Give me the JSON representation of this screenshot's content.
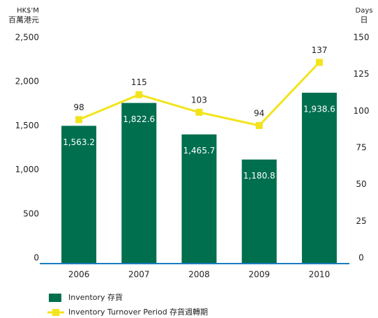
{
  "chart_data": {
    "type": "bar_line",
    "y_label": [
      "HK$'M",
      "百萬港元"
    ],
    "y2_label": [
      "Days",
      "日"
    ],
    "categories": [
      "2006",
      "2007",
      "2008",
      "2009",
      "2010"
    ],
    "series": [
      {
        "name": "Inventory 存貨",
        "type": "bar",
        "color": "#006f4e",
        "values": [
          1563.2,
          1822.6,
          1465.7,
          1180.8,
          1938.6
        ],
        "value_labels": [
          "1,563.2",
          "1,822.6",
          "1,465.7",
          "1,180.8",
          "1,938.6"
        ]
      },
      {
        "name": "Inventory Turnover Period 存貨週轉期",
        "type": "line",
        "color": "#f2e41c",
        "axis": "y2",
        "values": [
          98,
          115,
          103,
          94,
          137
        ]
      }
    ],
    "ylim": [
      0,
      2500
    ],
    "yticks": [
      0,
      500,
      {
        "value": 1000,
        "label": "1,000"
      },
      {
        "value": 1500,
        "label": "1,500"
      },
      {
        "value": 2000,
        "label": "2,000"
      },
      {
        "value": 2500,
        "label": "2,500"
      }
    ],
    "y2lim": [
      0,
      150
    ],
    "y2ticks": [
      0,
      25,
      50,
      75,
      100,
      125,
      150
    ],
    "axis_color": "#1a7bbf"
  }
}
